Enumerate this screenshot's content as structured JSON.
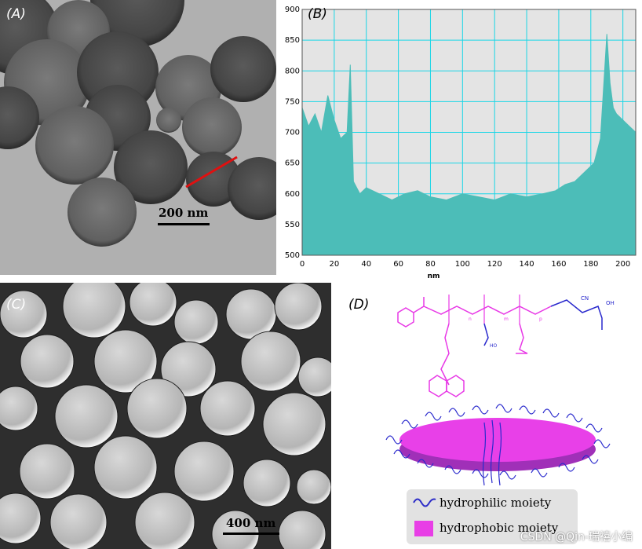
{
  "panels": {
    "a": {
      "label": "(A)",
      "scalebar": "200 nm"
    },
    "b": {
      "label": "(B)"
    },
    "c": {
      "label": "(C)",
      "scalebar": "400 nm"
    },
    "d": {
      "label": "(D)"
    }
  },
  "chart_data": {
    "type": "area",
    "title": "",
    "xlabel": "nm",
    "ylabel": "",
    "xlim": [
      0,
      208
    ],
    "ylim": [
      500,
      900
    ],
    "xticks": [
      0,
      20,
      40,
      60,
      80,
      100,
      120,
      140,
      160,
      180,
      200
    ],
    "yticks": [
      500,
      550,
      600,
      650,
      700,
      750,
      800,
      850,
      900
    ],
    "grid": true,
    "fill_color": "#4cbdb8",
    "plot_bg": "#e4e4e4",
    "grid_color": "#19d6e6",
    "x": [
      0,
      4,
      8,
      12,
      16,
      20,
      24,
      28,
      30,
      32,
      36,
      40,
      48,
      56,
      64,
      72,
      80,
      90,
      100,
      110,
      120,
      130,
      140,
      150,
      158,
      164,
      170,
      176,
      182,
      186,
      190,
      192,
      194,
      196,
      200,
      204,
      208
    ],
    "y": [
      740,
      710,
      730,
      700,
      760,
      720,
      690,
      700,
      810,
      620,
      600,
      610,
      600,
      590,
      600,
      605,
      595,
      590,
      600,
      595,
      590,
      600,
      595,
      600,
      605,
      615,
      620,
      635,
      650,
      690,
      860,
      780,
      740,
      730,
      720,
      710,
      700
    ]
  },
  "scheme": {
    "labels": [
      "CN",
      "HO",
      "OH",
      "n",
      "m",
      "p"
    ]
  },
  "legend": {
    "hydrophilic": "hydrophilic moiety",
    "hydrophobic": "hydrophobic moiety",
    "hydrophilic_color": "#2d2dc8",
    "hydrophobic_color": "#e83ee6"
  },
  "watermark": "CSDN @Qin-瑞禧小编"
}
